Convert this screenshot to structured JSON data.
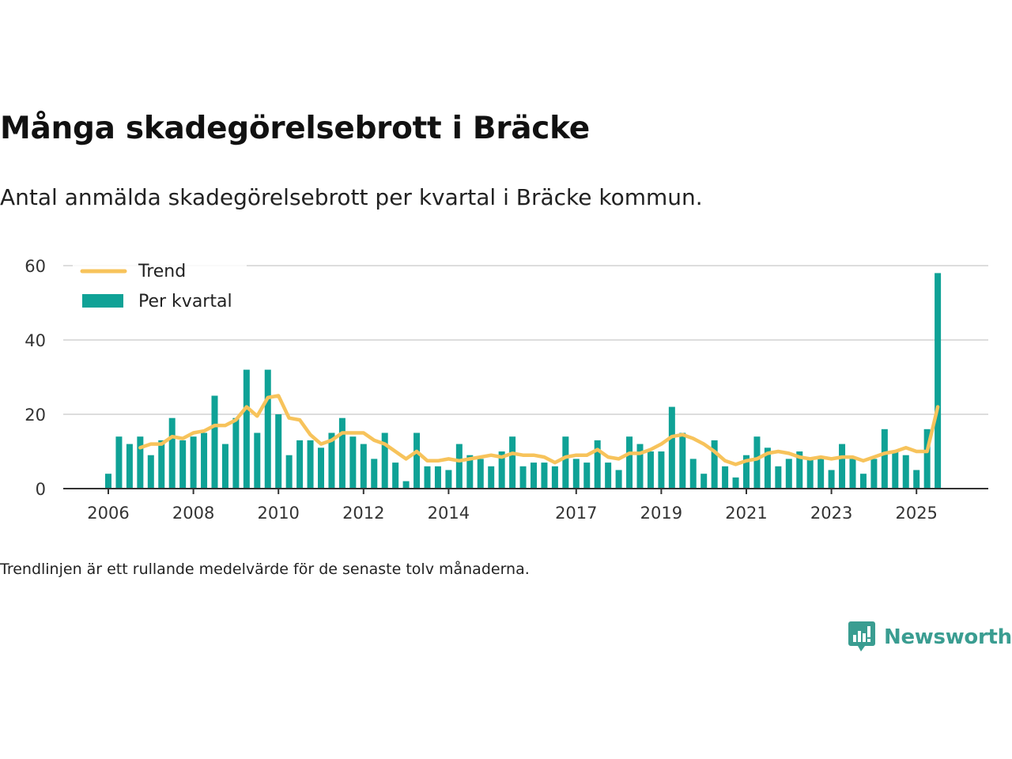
{
  "title": "Många skadegörelsebrott i Bräcke",
  "subtitle": "Antal anmälda skadegörelsebrott per kvartal i Bräcke kommun.",
  "note": "Trendlinjen är ett rullande medelvärde för de senaste tolv månaderna.",
  "brand": {
    "name": "Newsworthy",
    "icon": "newsworthy-logo-icon"
  },
  "colors": {
    "bar": "#0fa296",
    "trend": "#f7c35b",
    "grid": "#dddddd",
    "axis": "#333333"
  },
  "chart_data": {
    "type": "bar",
    "title": "Många skadegörelsebrott i Bräcke",
    "xlabel": "",
    "ylabel": "",
    "ylim": [
      0,
      60
    ],
    "yticks": [
      0,
      20,
      40,
      60
    ],
    "grid": true,
    "legend_position": "top-left",
    "x_start": 2006,
    "x_end_quarter_offset": 78,
    "xticks": [
      {
        "label": "2006",
        "quarter_index": 0
      },
      {
        "label": "2008",
        "quarter_index": 8
      },
      {
        "label": "2010",
        "quarter_index": 16
      },
      {
        "label": "2012",
        "quarter_index": 24
      },
      {
        "label": "2014",
        "quarter_index": 32
      },
      {
        "label": "2017",
        "quarter_index": 44
      },
      {
        "label": "2019",
        "quarter_index": 52
      },
      {
        "label": "2021",
        "quarter_index": 60
      },
      {
        "label": "2023",
        "quarter_index": 68
      },
      {
        "label": "2025",
        "quarter_index": 76
      }
    ],
    "series": [
      {
        "name": "Per kvartal",
        "type": "bar",
        "values": [
          4,
          14,
          12,
          14,
          9,
          13,
          19,
          13,
          14,
          15,
          25,
          12,
          19,
          32,
          15,
          32,
          20,
          9,
          13,
          13,
          11,
          15,
          19,
          14,
          12,
          8,
          15,
          7,
          2,
          15,
          6,
          6,
          5,
          12,
          9,
          8,
          6,
          10,
          14,
          6,
          7,
          7,
          6,
          14,
          8,
          7,
          13,
          7,
          5,
          14,
          12,
          10,
          10,
          22,
          15,
          8,
          4,
          13,
          6,
          3,
          9,
          14,
          11,
          6,
          8,
          10,
          8,
          8,
          5,
          12,
          8,
          4,
          8,
          16,
          10,
          9,
          5,
          16,
          58
        ]
      },
      {
        "name": "Trend",
        "type": "line",
        "start_index": 3,
        "values": [
          11,
          12,
          12,
          14,
          13.5,
          15,
          15.5,
          17,
          17,
          18.5,
          22,
          19.5,
          24.5,
          25,
          19,
          18.5,
          14.5,
          12,
          13,
          15,
          15,
          15,
          13,
          12,
          10,
          8,
          10,
          7.5,
          7.5,
          8,
          7.5,
          8,
          8.5,
          9,
          8.5,
          9.5,
          9,
          9,
          8.5,
          7,
          8.5,
          9,
          9,
          10.5,
          8.5,
          8,
          9.5,
          9.5,
          10.5,
          12,
          14,
          14.5,
          13.5,
          12,
          10,
          7.5,
          6.5,
          7.5,
          8,
          9.5,
          10,
          9.5,
          8.5,
          8,
          8.5,
          8,
          8.5,
          8.5,
          7.5,
          8.5,
          9.5,
          10,
          11,
          10,
          10,
          22
        ]
      }
    ]
  }
}
